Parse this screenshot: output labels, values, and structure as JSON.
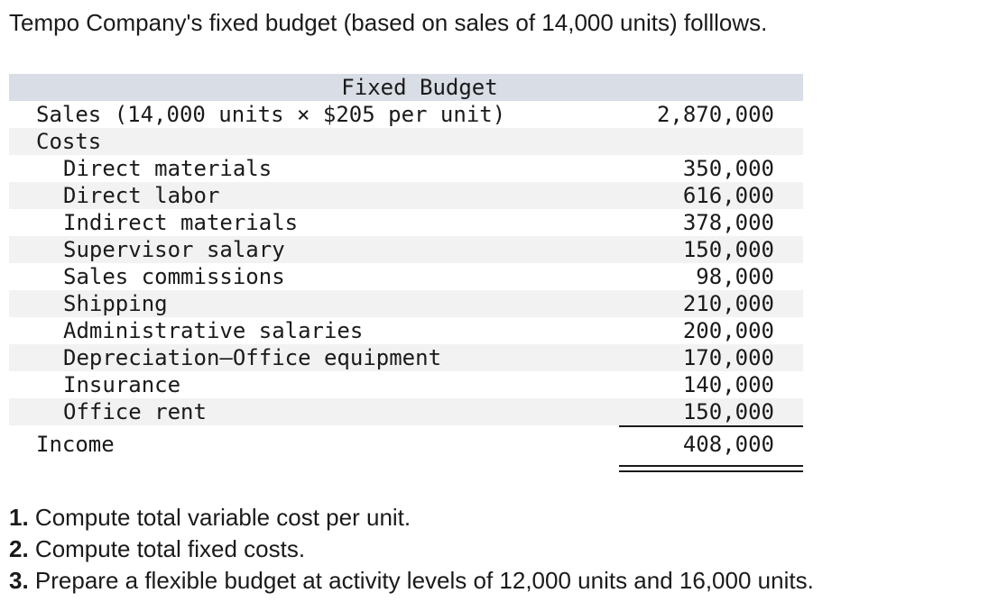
{
  "intro": "Tempo Company's fixed budget (based on sales of 14,000 units) folllows.",
  "table": {
    "header": "Fixed Budget",
    "sales": {
      "label": "Sales (14,000 units × $205 per unit)",
      "amount": "2,870,000"
    },
    "costs_label": "Costs",
    "costs": [
      {
        "label": "Direct materials",
        "amount": "350,000"
      },
      {
        "label": "Direct labor",
        "amount": "616,000"
      },
      {
        "label": "Indirect materials",
        "amount": "378,000"
      },
      {
        "label": "Supervisor salary",
        "amount": "150,000"
      },
      {
        "label": "Sales commissions",
        "amount": "98,000"
      },
      {
        "label": "Shipping",
        "amount": "210,000"
      },
      {
        "label": "Administrative salaries",
        "amount": "200,000"
      },
      {
        "label": "Depreciation—Office equipment",
        "amount": "170,000"
      },
      {
        "label": "Insurance",
        "amount": "140,000"
      },
      {
        "label": "Office rent",
        "amount": "150,000"
      }
    ],
    "income": {
      "label": "Income",
      "amount": "408,000"
    }
  },
  "questions": [
    {
      "number": "1.",
      "text": " Compute total variable cost per unit."
    },
    {
      "number": "2.",
      "text": " Compute total fixed costs."
    },
    {
      "number": "3.",
      "text": " Prepare a flexible budget at activity levels of 12,000 units and 16,000 units."
    }
  ]
}
